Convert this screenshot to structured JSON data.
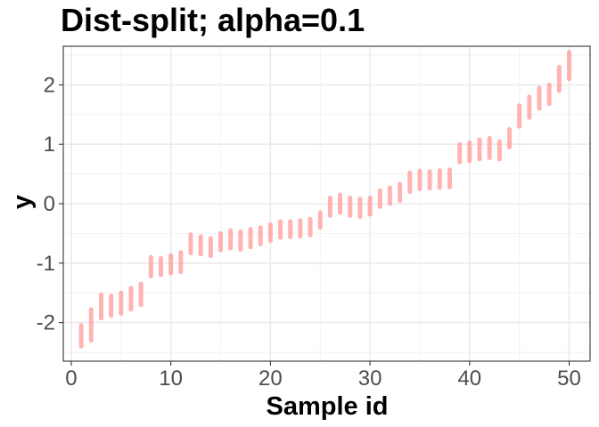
{
  "chart_data": {
    "type": "interval",
    "title": "Dist-split; alpha=0.1",
    "xlabel": "Sample id",
    "ylabel": "y",
    "xlim": [
      -0.8,
      52.1
    ],
    "ylim": [
      -2.65,
      2.65
    ],
    "x_ticks": [
      0,
      10,
      20,
      30,
      40,
      50
    ],
    "y_ticks": [
      -2,
      -1,
      0,
      1,
      2
    ],
    "grid": true,
    "interval_color": "#ff9999",
    "intervals": [
      {
        "x": 1,
        "low": -2.4,
        "high": -2.05
      },
      {
        "x": 2,
        "low": -2.3,
        "high": -1.78
      },
      {
        "x": 3,
        "low": -1.93,
        "high": -1.53
      },
      {
        "x": 4,
        "low": -1.88,
        "high": -1.55
      },
      {
        "x": 5,
        "low": -1.85,
        "high": -1.5
      },
      {
        "x": 6,
        "low": -1.78,
        "high": -1.42
      },
      {
        "x": 7,
        "low": -1.7,
        "high": -1.35
      },
      {
        "x": 8,
        "low": -1.22,
        "high": -0.9
      },
      {
        "x": 9,
        "low": -1.2,
        "high": -0.92
      },
      {
        "x": 10,
        "low": -1.17,
        "high": -0.87
      },
      {
        "x": 11,
        "low": -1.15,
        "high": -0.82
      },
      {
        "x": 12,
        "low": -0.83,
        "high": -0.52
      },
      {
        "x": 13,
        "low": -0.85,
        "high": -0.55
      },
      {
        "x": 14,
        "low": -0.88,
        "high": -0.58
      },
      {
        "x": 15,
        "low": -0.78,
        "high": -0.5
      },
      {
        "x": 16,
        "low": -0.75,
        "high": -0.45
      },
      {
        "x": 17,
        "low": -0.77,
        "high": -0.47
      },
      {
        "x": 18,
        "low": -0.73,
        "high": -0.43
      },
      {
        "x": 19,
        "low": -0.68,
        "high": -0.4
      },
      {
        "x": 20,
        "low": -0.62,
        "high": -0.35
      },
      {
        "x": 21,
        "low": -0.57,
        "high": -0.3
      },
      {
        "x": 22,
        "low": -0.56,
        "high": -0.3
      },
      {
        "x": 23,
        "low": -0.55,
        "high": -0.28
      },
      {
        "x": 24,
        "low": -0.53,
        "high": -0.26
      },
      {
        "x": 25,
        "low": -0.4,
        "high": -0.15
      },
      {
        "x": 26,
        "low": -0.2,
        "high": 0.1
      },
      {
        "x": 27,
        "low": -0.15,
        "high": 0.15
      },
      {
        "x": 28,
        "low": -0.2,
        "high": 0.1
      },
      {
        "x": 29,
        "low": -0.22,
        "high": 0.08
      },
      {
        "x": 30,
        "low": -0.18,
        "high": 0.1
      },
      {
        "x": 31,
        "low": -0.05,
        "high": 0.22
      },
      {
        "x": 32,
        "low": 0.0,
        "high": 0.27
      },
      {
        "x": 33,
        "low": 0.05,
        "high": 0.33
      },
      {
        "x": 34,
        "low": 0.2,
        "high": 0.52
      },
      {
        "x": 35,
        "low": 0.25,
        "high": 0.55
      },
      {
        "x": 36,
        "low": 0.26,
        "high": 0.54
      },
      {
        "x": 37,
        "low": 0.27,
        "high": 0.56
      },
      {
        "x": 38,
        "low": 0.28,
        "high": 0.57
      },
      {
        "x": 39,
        "low": 0.7,
        "high": 1.0
      },
      {
        "x": 40,
        "low": 0.72,
        "high": 1.03
      },
      {
        "x": 41,
        "low": 0.75,
        "high": 1.08
      },
      {
        "x": 42,
        "low": 0.77,
        "high": 1.1
      },
      {
        "x": 43,
        "low": 0.75,
        "high": 1.05
      },
      {
        "x": 44,
        "low": 0.95,
        "high": 1.25
      },
      {
        "x": 45,
        "low": 1.3,
        "high": 1.65
      },
      {
        "x": 46,
        "low": 1.45,
        "high": 1.8
      },
      {
        "x": 47,
        "low": 1.6,
        "high": 1.95
      },
      {
        "x": 48,
        "low": 1.68,
        "high": 2.0
      },
      {
        "x": 49,
        "low": 1.9,
        "high": 2.3
      },
      {
        "x": 50,
        "low": 2.1,
        "high": 2.55
      }
    ]
  }
}
